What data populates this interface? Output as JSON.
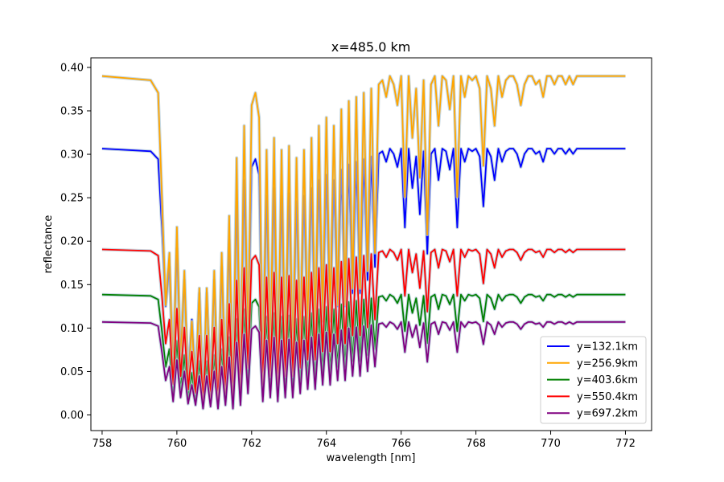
{
  "chart_data": {
    "type": "line",
    "title": "x=485.0 km",
    "xlabel": "wavelength [nm]",
    "ylabel": "reflectance",
    "xlim": [
      757.7,
      772.7
    ],
    "ylim": [
      -0.018,
      0.411
    ],
    "xticks": [
      758,
      760,
      762,
      764,
      766,
      768,
      770,
      772
    ],
    "xtick_labels": [
      "758",
      "760",
      "762",
      "764",
      "766",
      "768",
      "770",
      "772"
    ],
    "yticks": [
      0.0,
      0.05,
      0.1,
      0.15,
      0.2,
      0.25,
      0.3,
      0.35,
      0.4
    ],
    "ytick_labels": [
      "0.00",
      "0.05",
      "0.10",
      "0.15",
      "0.20",
      "0.25",
      "0.30",
      "0.35",
      "0.40"
    ],
    "grid": false,
    "legend_position": "lower-right",
    "shaded_uncertainty_band": true,
    "band_color": "#aec7d6",
    "series": [
      {
        "name": "y=132.1km",
        "color": "#0000ff",
        "baseline": 0.3065
      },
      {
        "name": "y=256.9km",
        "color": "#ffa500",
        "baseline": 0.39
      },
      {
        "name": "y=403.6km",
        "color": "#008000",
        "baseline": 0.1385
      },
      {
        "name": "y=550.4km",
        "color": "#ff0000",
        "baseline": 0.1905
      },
      {
        "name": "y=697.2km",
        "color": "#800080",
        "baseline": 0.107
      }
    ],
    "absorption_profile": {
      "wavelength": [
        758.0,
        759.3,
        759.5,
        759.6,
        759.7,
        759.8,
        759.9,
        760.0,
        760.1,
        760.2,
        760.3,
        760.4,
        760.5,
        760.6,
        760.7,
        760.8,
        760.9,
        761.0,
        761.1,
        761.2,
        761.3,
        761.4,
        761.5,
        761.6,
        761.7,
        761.8,
        761.9,
        762.0,
        762.1,
        762.2,
        762.3,
        762.4,
        762.5,
        762.6,
        762.7,
        762.8,
        762.9,
        763.0,
        763.1,
        763.2,
        763.3,
        763.4,
        763.5,
        763.6,
        763.7,
        763.8,
        763.9,
        764.0,
        764.1,
        764.2,
        764.3,
        764.4,
        764.5,
        764.6,
        764.7,
        764.8,
        764.9,
        765.0,
        765.1,
        765.2,
        765.3,
        765.4,
        765.5,
        765.6,
        765.7,
        765.8,
        765.9,
        766.0,
        766.1,
        766.2,
        766.3,
        766.4,
        766.5,
        766.6,
        766.7,
        766.8,
        766.9,
        767.0,
        767.1,
        767.2,
        767.3,
        767.4,
        767.5,
        767.6,
        767.7,
        767.8,
        767.9,
        768.0,
        768.1,
        768.2,
        768.3,
        768.4,
        768.5,
        768.6,
        768.7,
        768.8,
        768.9,
        769.0,
        769.1,
        769.2,
        769.3,
        769.4,
        769.5,
        769.6,
        769.7,
        769.8,
        769.9,
        770.0,
        770.1,
        770.2,
        770.3,
        770.4,
        770.5,
        770.6,
        770.7,
        770.8,
        770.9,
        771.0,
        771.5,
        771.9,
        772.0
      ],
      "ratio_to_baseline": [
        1.0,
        0.99,
        0.96,
        0.7,
        0.4,
        0.55,
        0.15,
        0.62,
        0.2,
        0.5,
        0.12,
        0.35,
        0.1,
        0.45,
        0.05,
        0.45,
        0.08,
        0.5,
        0.05,
        0.55,
        0.1,
        0.65,
        0.05,
        0.8,
        0.1,
        0.88,
        0.25,
        0.93,
        0.96,
        0.9,
        0.15,
        0.82,
        0.2,
        0.85,
        0.15,
        0.82,
        0.2,
        0.83,
        0.2,
        0.8,
        0.25,
        0.82,
        0.3,
        0.85,
        0.3,
        0.88,
        0.35,
        0.9,
        0.35,
        0.88,
        0.4,
        0.92,
        0.4,
        0.94,
        0.45,
        0.95,
        0.45,
        0.96,
        0.5,
        0.97,
        0.55,
        0.98,
        0.99,
        0.95,
        1.0,
        0.98,
        0.93,
        1.0,
        0.7,
        1.0,
        0.85,
        0.97,
        0.75,
        0.99,
        0.6,
        0.98,
        1.0,
        0.88,
        1.0,
        0.99,
        0.92,
        1.0,
        0.7,
        1.0,
        0.95,
        1.0,
        0.99,
        1.0,
        0.97,
        0.78,
        1.0,
        0.97,
        0.88,
        1.0,
        0.95,
        0.99,
        1.0,
        1.0,
        0.98,
        0.93,
        0.98,
        1.0,
        1.0,
        0.98,
        0.99,
        0.95,
        1.0,
        1.0,
        0.98,
        1.0,
        1.0,
        0.98,
        1.0,
        0.98,
        1.0,
        1.0,
        1.0,
        1.0,
        1.0,
        1.0,
        1.0
      ],
      "curve_exponent": [
        1.0,
        1.25,
        1.05,
        0.95,
        1.15
      ]
    }
  }
}
